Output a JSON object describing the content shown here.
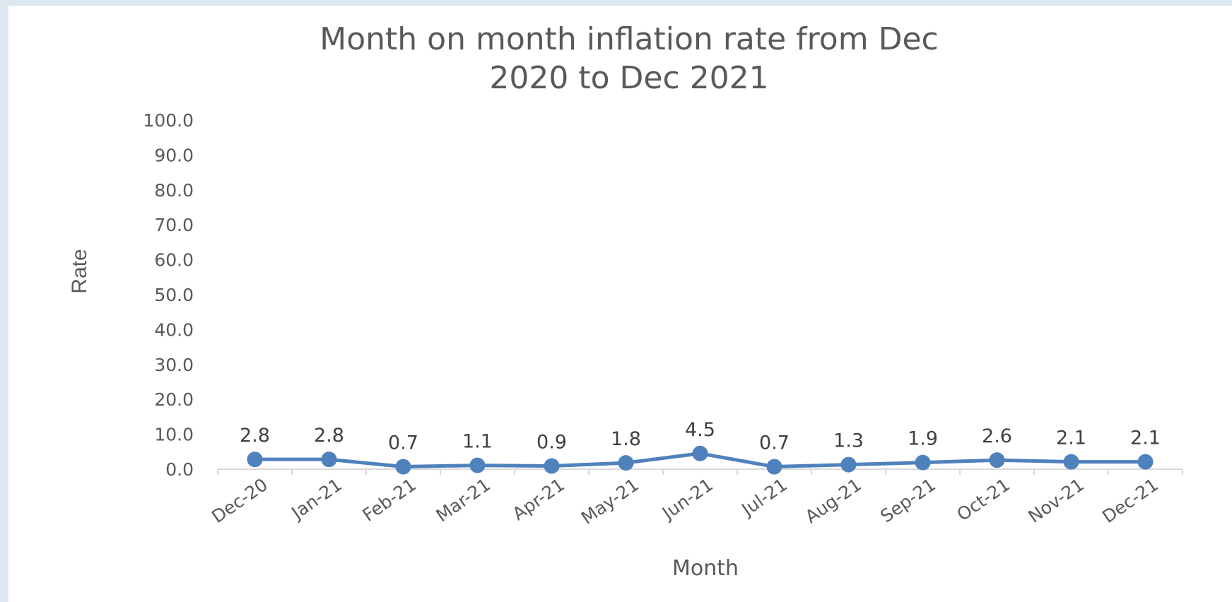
{
  "chart_data": {
    "type": "line",
    "title_lines": [
      "Month on month inflation rate from Dec",
      "2020 to Dec 2021"
    ],
    "xlabel": "Month",
    "ylabel": "Rate",
    "ylim": [
      0,
      100
    ],
    "y_ticks": [
      "0.0",
      "10.0",
      "20.0",
      "30.0",
      "40.0",
      "50.0",
      "60.0",
      "70.0",
      "80.0",
      "90.0",
      "100.0"
    ],
    "categories": [
      "Dec-20",
      "Jan-21",
      "Feb-21",
      "Mar-21",
      "Apr-21",
      "May-21",
      "Jun-21",
      "Jul-21",
      "Aug-21",
      "Sep-21",
      "Oct-21",
      "Nov-21",
      "Dec-21"
    ],
    "values": [
      2.8,
      2.8,
      0.7,
      1.1,
      0.9,
      1.8,
      4.5,
      0.7,
      1.3,
      1.9,
      2.6,
      2.1,
      2.1
    ],
    "data_labels": [
      "2.8",
      "2.8",
      "0.7",
      "1.1",
      "0.9",
      "1.8",
      "4.5",
      "0.7",
      "1.3",
      "1.9",
      "2.6",
      "2.1",
      "2.1"
    ],
    "grid": false,
    "legend": "none",
    "colors": {
      "series": "#4f81bd",
      "text": "#595959",
      "axis": "#d9d9d9"
    }
  }
}
